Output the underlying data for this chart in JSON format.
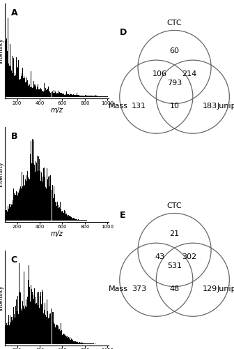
{
  "panel_labels": [
    "A",
    "B",
    "C",
    "D",
    "E"
  ],
  "mz_range": [
    100,
    1000
  ],
  "venn_D": {
    "label": "D",
    "CTC_only": 60,
    "Mass_only": 131,
    "Juniper_only": 183,
    "Mass_CTC": 106,
    "CTC_Juniper": 214,
    "Mass_Juniper": 10,
    "all_three": 793,
    "circle_labels": [
      "CTC",
      "Mass",
      "Juniper"
    ]
  },
  "venn_E": {
    "label": "E",
    "CTC_only": 21,
    "Mass_only": 373,
    "Juniper_only": 129,
    "Mass_CTC": 43,
    "CTC_Juniper": 302,
    "Mass_Juniper": 48,
    "all_three": 531,
    "circle_labels": [
      "CTC",
      "Mass",
      "Juniper"
    ]
  },
  "xlabel": "m/z",
  "ylabel": "Intensity",
  "bar_color": "#000000",
  "background_color": "#ffffff",
  "font_size_label": 7,
  "font_size_panel": 9,
  "font_size_venn_num": 8,
  "font_size_venn_label": 8
}
